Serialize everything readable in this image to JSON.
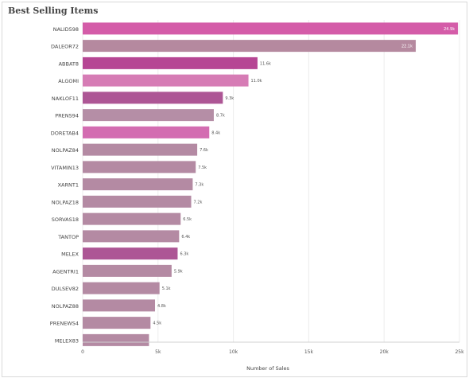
{
  "panel": {
    "title": "Best Selling Items"
  },
  "chart_data": {
    "type": "bar",
    "orientation": "horizontal",
    "title": "Best Selling Items",
    "xlabel": "Number of Sales",
    "ylabel": "",
    "xlim": [
      0,
      25000
    ],
    "x_ticks": [
      0,
      5000,
      10000,
      15000,
      20000,
      25000
    ],
    "x_tick_labels": [
      "0",
      "5k",
      "10k",
      "15k",
      "20k",
      "25k"
    ],
    "grid": true,
    "categories": [
      "NALID598",
      "DALEOR72",
      "ABBAT8",
      "ALGOMI",
      "NAKLOF11",
      "PRENS94",
      "DORETAB4",
      "NOLPAZ84",
      "VITAMIN13",
      "XARNT1",
      "NOLPAZ18",
      "SORVAS18",
      "TANTOP",
      "MELEX",
      "AGENTRI1",
      "DULSEV82",
      "NOLPAZ88",
      "PRENEWS4",
      "MELEX83"
    ],
    "values": [
      24900,
      22100,
      11600,
      11000,
      9300,
      8700,
      8400,
      7600,
      7500,
      7300,
      7200,
      6500,
      6400,
      6300,
      5900,
      5100,
      4800,
      4500,
      4400
    ],
    "data_labels": [
      "24.9k",
      "22.1k",
      "11.6k",
      "11.0k",
      "9.3k",
      "8.7k",
      "8.4k",
      "7.6k",
      "7.5k",
      "7.3k",
      "7.2k",
      "6.5k",
      "6.4k",
      "6.3k",
      "5.9k",
      "5.1k",
      "4.8k",
      "4.5k",
      ""
    ],
    "colors": [
      "#d45ca8",
      "#b5899f",
      "#b64694",
      "#d67cb5",
      "#ad5695",
      "#b58ea6",
      "#d36cb1",
      "#b48aa3",
      "#b48aa3",
      "#b48aa3",
      "#b48aa3",
      "#b48aa3",
      "#b48aa3",
      "#ad5695",
      "#b48aa3",
      "#b48aa3",
      "#b48aa3",
      "#b48aa3",
      "#b48aa3"
    ]
  }
}
